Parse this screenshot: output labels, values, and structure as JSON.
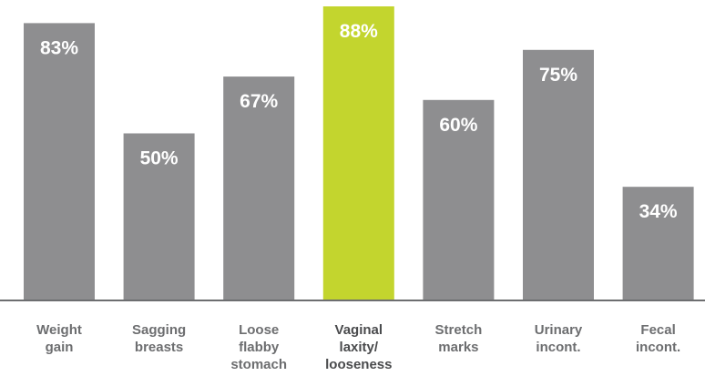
{
  "chart_data": {
    "type": "bar",
    "categories": [
      [
        "Weight",
        "gain"
      ],
      [
        "Sagging",
        "breasts"
      ],
      [
        "Loose",
        "flabby",
        "stomach"
      ],
      [
        "Vaginal",
        "laxity/",
        "looseness"
      ],
      [
        "Stretch",
        "marks"
      ],
      [
        "Urinary",
        "incont."
      ],
      [
        "Fecal",
        "incont."
      ]
    ],
    "values": [
      83,
      50,
      67,
      88,
      60,
      75,
      34
    ],
    "value_labels": [
      "83%",
      "50%",
      "67%",
      "88%",
      "60%",
      "75%",
      "34%"
    ],
    "highlight_index": 3,
    "ylim": [
      0,
      100
    ],
    "grid": false,
    "title": "",
    "xlabel": "",
    "ylabel": ""
  },
  "colors": {
    "bar": "#8e8e90",
    "highlight_bar": "#c3d52e",
    "value_text": "#ffffff",
    "label_text": "#6d6e70",
    "highlight_label_text": "#4a4b4d",
    "axis": "#6d6e70"
  }
}
